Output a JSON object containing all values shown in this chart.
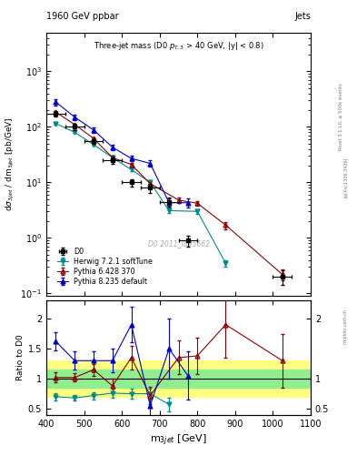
{
  "title_top_left": "1960 GeV ppbar",
  "title_top_right": "Jets",
  "plot_title": "Three-jet mass (D0 p$_{T,3}$ > 40 GeV, |y| < 0.8)",
  "ylabel_main": "dσ_3jet / dm_3jet [pb/GeV]",
  "ylabel_ratio": "Ratio to D0",
  "xlabel": "m_3jet [GeV]",
  "watermark": "D0 2011_I895662",
  "d0_x": [
    425,
    475,
    525,
    575,
    625,
    675,
    725,
    775,
    875,
    1025
  ],
  "d0_y": [
    175,
    100,
    55,
    25,
    10,
    8.0,
    4.5,
    0.9,
    null,
    0.2
  ],
  "d0_yerr_lo": [
    20,
    12,
    6,
    3,
    1.5,
    1.5,
    0.8,
    0.2,
    null,
    0.06
  ],
  "d0_yerr_hi": [
    20,
    12,
    6,
    3,
    1.5,
    1.5,
    0.8,
    0.2,
    null,
    0.06
  ],
  "d0_xerr": [
    25,
    25,
    25,
    25,
    25,
    25,
    25,
    25,
    50,
    25
  ],
  "herwig_x": [
    425,
    475,
    525,
    575,
    625,
    675,
    725,
    800,
    875
  ],
  "herwig_y": [
    115,
    80,
    48,
    28,
    17,
    10,
    3.1,
    3.0,
    0.35
  ],
  "herwig_yerr_lo": [
    4,
    3,
    2,
    1.5,
    1.0,
    0.7,
    0.3,
    0.3,
    0.05
  ],
  "herwig_yerr_hi": [
    4,
    3,
    2,
    1.5,
    1.0,
    0.7,
    0.3,
    0.3,
    0.05
  ],
  "pythia6_x": [
    425,
    475,
    525,
    575,
    625,
    675,
    750,
    800,
    875,
    1025
  ],
  "pythia6_y": [
    185,
    110,
    62,
    28,
    21,
    9.5,
    4.8,
    4.2,
    1.7,
    0.22
  ],
  "pythia6_yerr_lo": [
    8,
    5,
    3,
    2,
    1.5,
    0.8,
    0.5,
    0.4,
    0.25,
    0.05
  ],
  "pythia6_yerr_hi": [
    8,
    5,
    3,
    2,
    1.5,
    0.8,
    0.5,
    0.4,
    0.25,
    0.05
  ],
  "pythia8_x": [
    425,
    475,
    525,
    575,
    625,
    675,
    725,
    775
  ],
  "pythia8_y": [
    280,
    150,
    88,
    43,
    27,
    22,
    4.3,
    4.3
  ],
  "pythia8_yerr_lo": [
    35,
    18,
    10,
    5,
    3,
    3,
    0.8,
    0.8
  ],
  "pythia8_yerr_hi": [
    35,
    18,
    10,
    5,
    3,
    3,
    0.8,
    0.8
  ],
  "ratio_herwig_x": [
    425,
    475,
    525,
    575,
    625,
    675,
    725
  ],
  "ratio_herwig_y": [
    0.7,
    0.68,
    0.72,
    0.76,
    0.75,
    0.75,
    0.57
  ],
  "ratio_herwig_yerr": [
    0.06,
    0.05,
    0.06,
    0.07,
    0.08,
    0.09,
    0.12
  ],
  "ratio_pythia6_x": [
    425,
    475,
    525,
    575,
    625,
    675,
    750,
    800,
    875,
    1025
  ],
  "ratio_pythia6_y": [
    1.02,
    1.02,
    1.15,
    0.88,
    1.35,
    0.72,
    1.35,
    1.38,
    1.9,
    1.3
  ],
  "ratio_pythia6_yerr_lo": [
    0.08,
    0.07,
    0.1,
    0.12,
    0.2,
    0.15,
    0.28,
    0.3,
    0.55,
    0.45
  ],
  "ratio_pythia6_yerr_hi": [
    0.08,
    0.07,
    0.1,
    0.12,
    0.2,
    0.15,
    0.28,
    0.3,
    0.55,
    0.45
  ],
  "ratio_pythia8_x": [
    425,
    475,
    525,
    575,
    625,
    675,
    725,
    775
  ],
  "ratio_pythia8_y": [
    1.62,
    1.3,
    1.3,
    1.3,
    1.9,
    0.55,
    1.5,
    1.05
  ],
  "ratio_pythia8_yerr_lo": [
    0.15,
    0.15,
    0.15,
    0.2,
    0.3,
    0.2,
    0.5,
    0.4
  ],
  "ratio_pythia8_yerr_hi": [
    0.15,
    0.15,
    0.15,
    0.2,
    0.3,
    0.2,
    0.5,
    0.4
  ],
  "band_edges": [
    400,
    500,
    600,
    700,
    800,
    900,
    1000,
    1100
  ],
  "band_yellow_lo": [
    0.7,
    0.7,
    0.7,
    0.7,
    0.7,
    0.7,
    0.7,
    0.7
  ],
  "band_yellow_hi": [
    1.3,
    1.3,
    1.3,
    1.3,
    1.3,
    1.3,
    1.3,
    1.3
  ],
  "band_green_lo": [
    0.85,
    0.85,
    0.85,
    0.85,
    0.85,
    0.85,
    0.85,
    0.85
  ],
  "band_green_hi": [
    1.15,
    1.15,
    1.15,
    1.15,
    1.15,
    1.15,
    1.15,
    1.15
  ],
  "colors": {
    "d0": "#000000",
    "herwig": "#008B8B",
    "pythia6": "#8B0000",
    "pythia8": "#0000CD",
    "band_green": "#90EE90",
    "band_yellow": "#FFFF80"
  },
  "xlim": [
    400,
    1100
  ],
  "ylim_main": [
    0.09,
    5000
  ],
  "ylim_ratio": [
    0.4,
    2.3
  ],
  "yticks_ratio": [
    0.5,
    1.0,
    1.5,
    2.0
  ],
  "ytick_ratio_labels": [
    "0.5",
    "1",
    "1.5",
    "2"
  ],
  "yticks_ratio_right": [
    0.5,
    1.0,
    2.0
  ],
  "ytick_ratio_right_labels": [
    "0.5",
    "1",
    "2"
  ],
  "fig_width": 3.93,
  "fig_height": 5.12,
  "dpi": 100
}
